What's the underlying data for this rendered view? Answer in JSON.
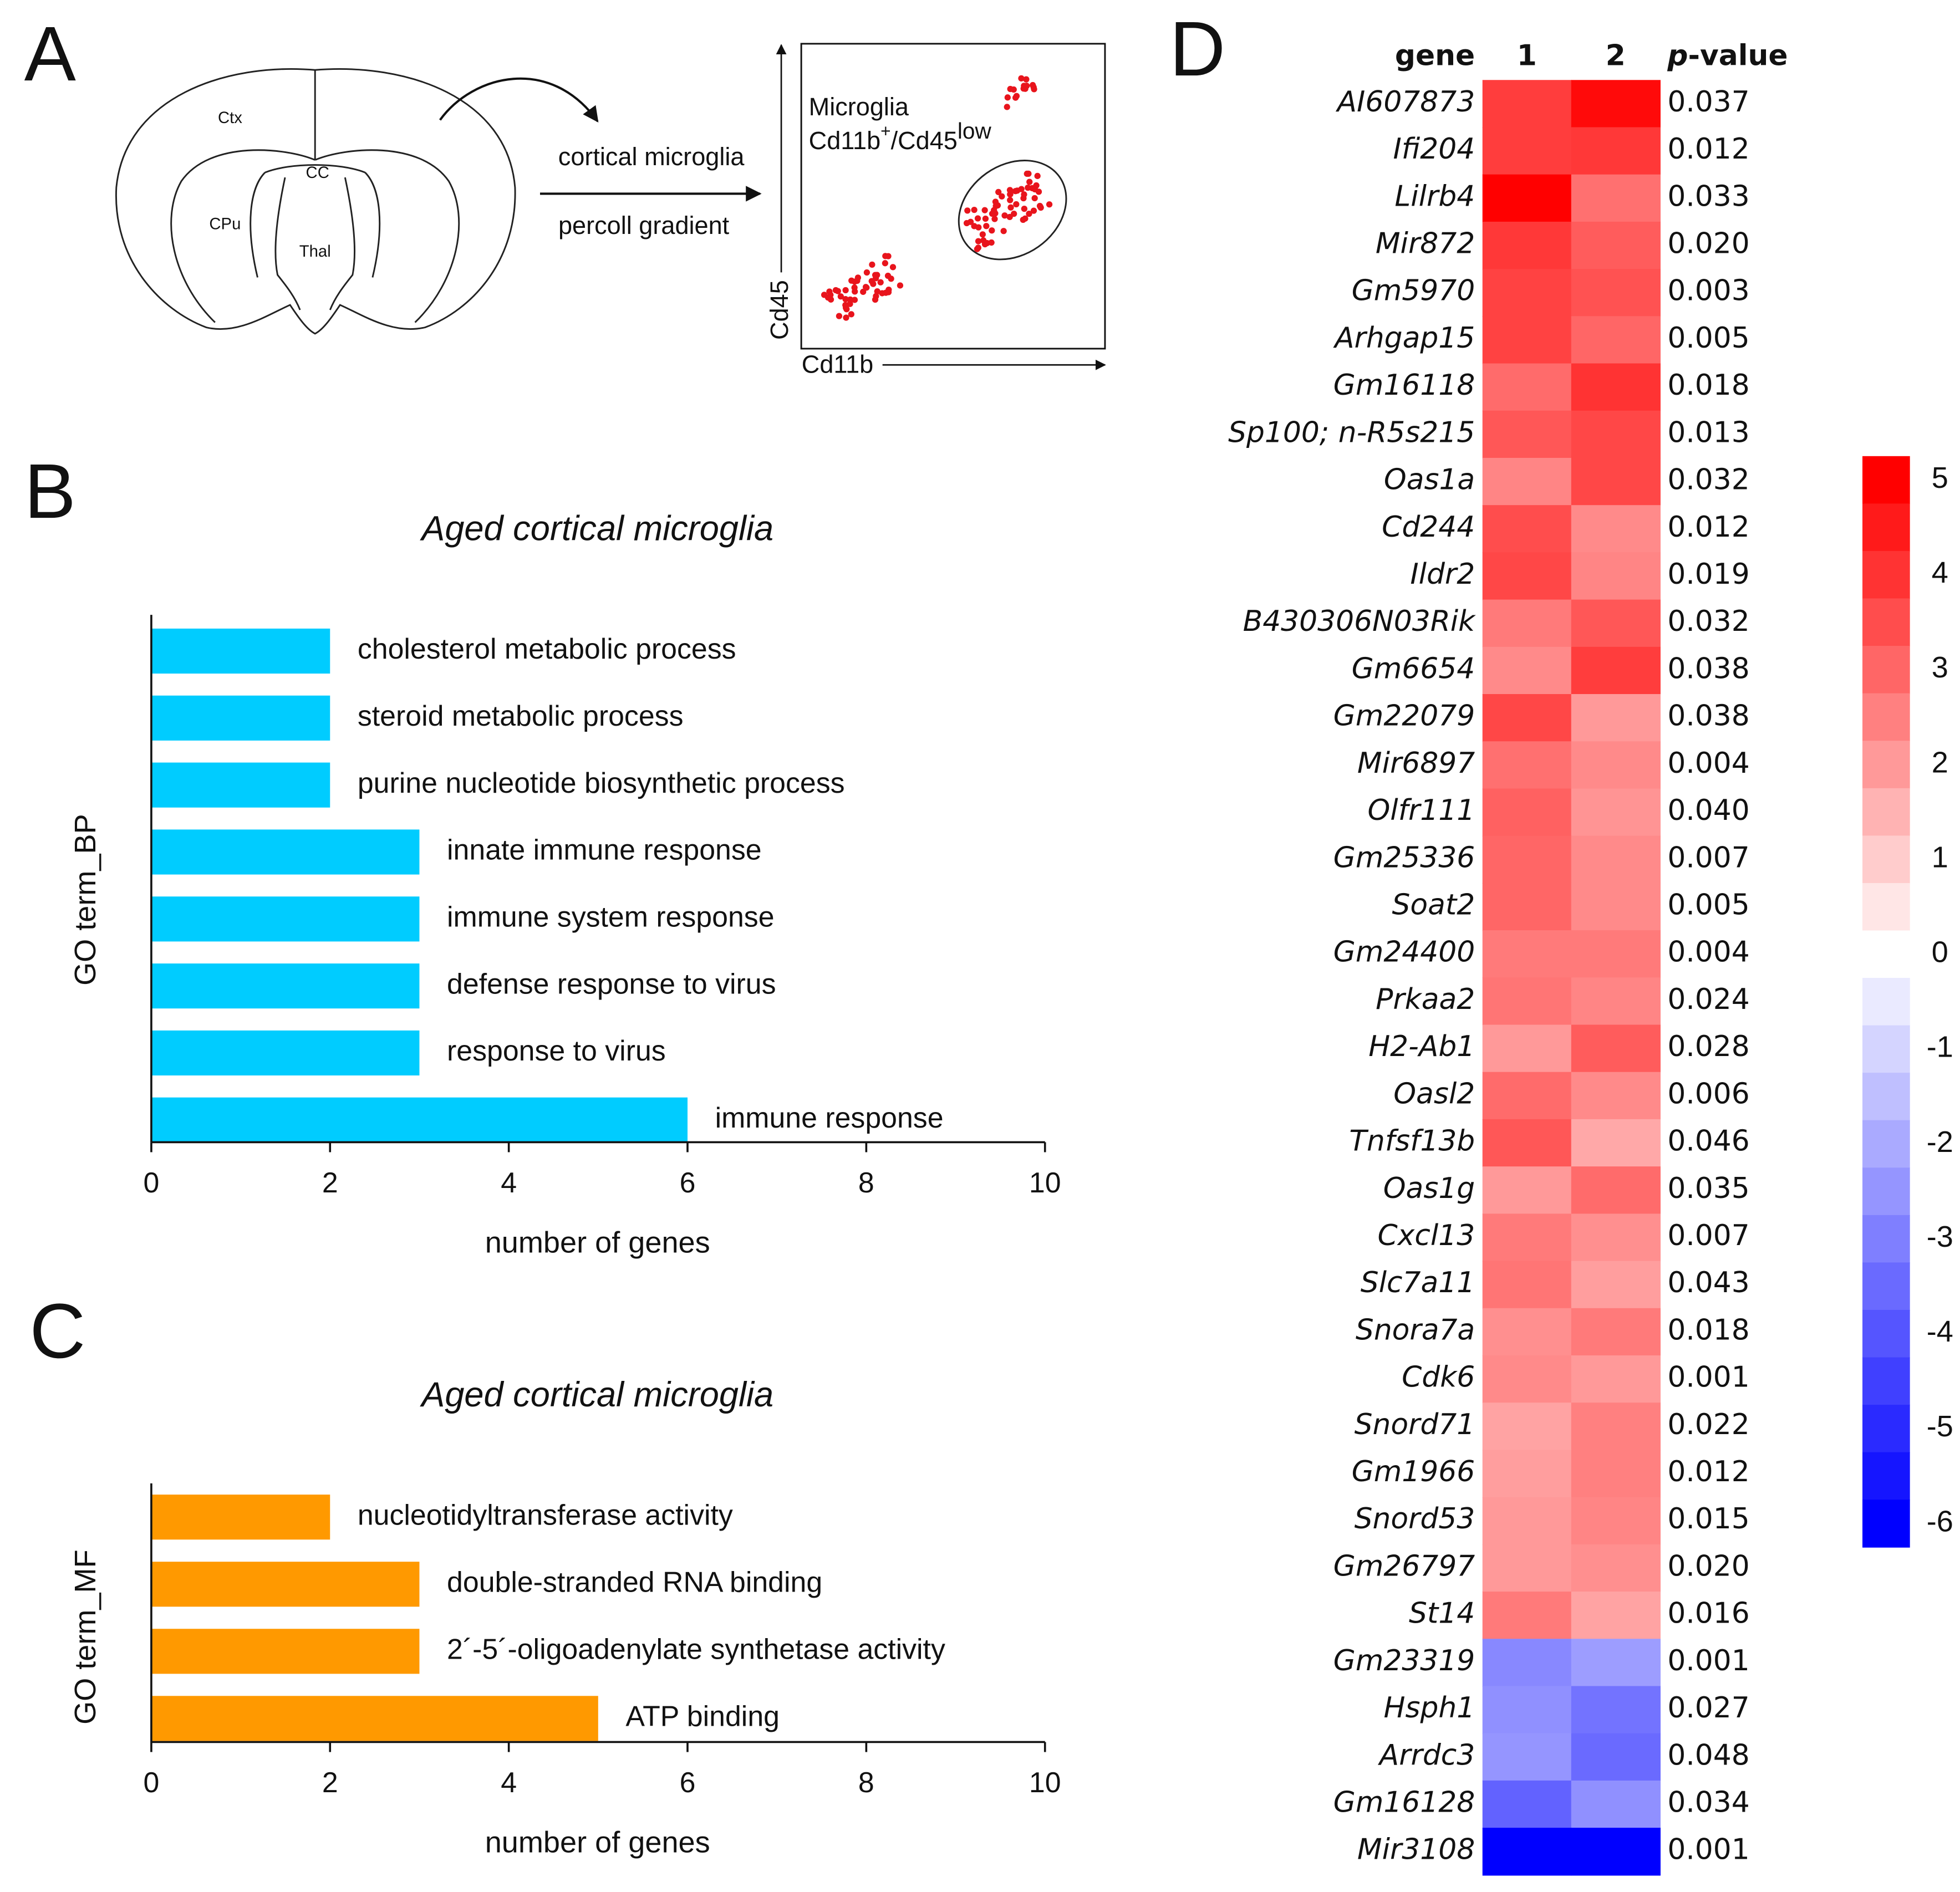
{
  "panels": [
    "A",
    "B",
    "C",
    "D"
  ],
  "diagram": {
    "regions": [
      "Ctx",
      "CC",
      "CPu",
      "Thal"
    ],
    "arrow_labels": [
      "cortical microglia",
      "percoll gradient"
    ],
    "gate_label": "Microglia",
    "gate_marker": [
      "Cd11b",
      "+",
      "/Cd45",
      "low"
    ],
    "y_axis": "Cd45",
    "x_axis": "Cd11b"
  },
  "chart_data": [
    {
      "type": "barh",
      "title": "Aged cortical microglia",
      "ylabel": "GO term_BP",
      "xlabel": "number of genes",
      "categories": [
        "cholesterol metabolic process",
        "steroid metabolic process",
        "purine nucleotide biosynthetic process",
        "innate immune response",
        "immune system response",
        "defense response to virus",
        "response to virus",
        "immune response"
      ],
      "values": [
        2,
        2,
        2,
        3,
        3,
        3,
        3,
        6
      ],
      "color": "#00ccff",
      "xlim": [
        0,
        10
      ],
      "xticks": [
        0,
        2,
        4,
        6,
        8,
        10
      ]
    },
    {
      "type": "barh",
      "title": "Aged cortical microglia",
      "ylabel": "GO term_MF",
      "xlabel": "number of genes",
      "categories": [
        "nucleotidyltransferase activity",
        "double-stranded RNA binding",
        "2´-5´-oligoadenylate synthetase activity",
        "ATP binding"
      ],
      "values": [
        2,
        3,
        3,
        5
      ],
      "color": "#ff9900",
      "xlim": [
        0,
        10
      ],
      "xticks": [
        0,
        2,
        4,
        6,
        8,
        10
      ]
    },
    {
      "type": "heatmap",
      "row_header": "gene",
      "columns": [
        "1",
        "2"
      ],
      "p_header": {
        "italic": "p",
        "rest": "-value"
      },
      "rows": [
        "AI607873",
        "Ifi204",
        "Lilrb4",
        "Mir872",
        "Gm5970",
        "Arhgap15",
        "Gm16118",
        "Sp100; n-R5s215",
        "Oas1a",
        "Cd244",
        "Ildr2",
        "B430306N03Rik",
        "Gm6654",
        "Gm22079",
        "Mir6897",
        "Olfr111",
        "Gm25336",
        "Soat2",
        "Gm24400",
        "Prkaa2",
        "H2-Ab1",
        "Oasl2",
        "Tnfsf13b",
        "Oas1g",
        "Cxcl13",
        "Slc7a11",
        "Snora7a",
        "Cdk6",
        "Snord71",
        "Gm1966",
        "Snord53",
        "Gm26797",
        "St14",
        "Gm23319",
        "Hsph1",
        "Arrdc3",
        "Gm16128",
        "Mir3108"
      ],
      "values": [
        [
          3.8,
          4.8
        ],
        [
          3.8,
          3.9
        ],
        [
          5.0,
          2.8
        ],
        [
          3.9,
          3.2
        ],
        [
          3.7,
          3.4
        ],
        [
          3.7,
          3.0
        ],
        [
          2.9,
          4.0
        ],
        [
          3.3,
          3.6
        ],
        [
          2.4,
          3.6
        ],
        [
          3.5,
          2.3
        ],
        [
          3.6,
          2.4
        ],
        [
          2.6,
          3.3
        ],
        [
          2.3,
          3.8
        ],
        [
          3.6,
          2.0
        ],
        [
          2.8,
          2.3
        ],
        [
          3.1,
          2.1
        ],
        [
          3.0,
          2.3
        ],
        [
          3.0,
          2.3
        ],
        [
          2.6,
          2.6
        ],
        [
          2.7,
          2.4
        ],
        [
          2.0,
          3.2
        ],
        [
          2.9,
          2.3
        ],
        [
          3.3,
          1.7
        ],
        [
          2.0,
          2.9
        ],
        [
          2.6,
          2.2
        ],
        [
          2.7,
          1.9
        ],
        [
          2.2,
          2.6
        ],
        [
          2.3,
          2.0
        ],
        [
          1.8,
          2.5
        ],
        [
          1.9,
          2.5
        ],
        [
          2.0,
          2.4
        ],
        [
          2.0,
          2.2
        ],
        [
          2.6,
          1.8
        ],
        [
          -2.8,
          -2.3
        ],
        [
          -2.6,
          -3.3
        ],
        [
          -2.5,
          -3.5
        ],
        [
          -3.7,
          -2.6
        ],
        [
          -6.0,
          -6.0
        ]
      ],
      "p_values": [
        "0.037",
        "0.012",
        "0.033",
        "0.020",
        "0.003",
        "0.005",
        "0.018",
        "0.013",
        "0.032",
        "0.012",
        "0.019",
        "0.032",
        "0.038",
        "0.038",
        "0.004",
        "0.040",
        "0.007",
        "0.005",
        "0.004",
        "0.024",
        "0.028",
        "0.006",
        "0.046",
        "0.035",
        "0.007",
        "0.043",
        "0.018",
        "0.001",
        "0.022",
        "0.012",
        "0.015",
        "0.020",
        "0.016",
        "0.001",
        "0.027",
        "0.048",
        "0.034",
        "0.001"
      ],
      "colors": {
        "high": "#ff0000",
        "mid": "#ffffff",
        "low": "#0000ff"
      },
      "zlim": [
        -6.25,
        5.25
      ],
      "zticks": [
        5,
        4,
        3,
        2,
        1,
        0,
        -1,
        -2,
        -3,
        -4,
        -5,
        -6
      ]
    }
  ]
}
